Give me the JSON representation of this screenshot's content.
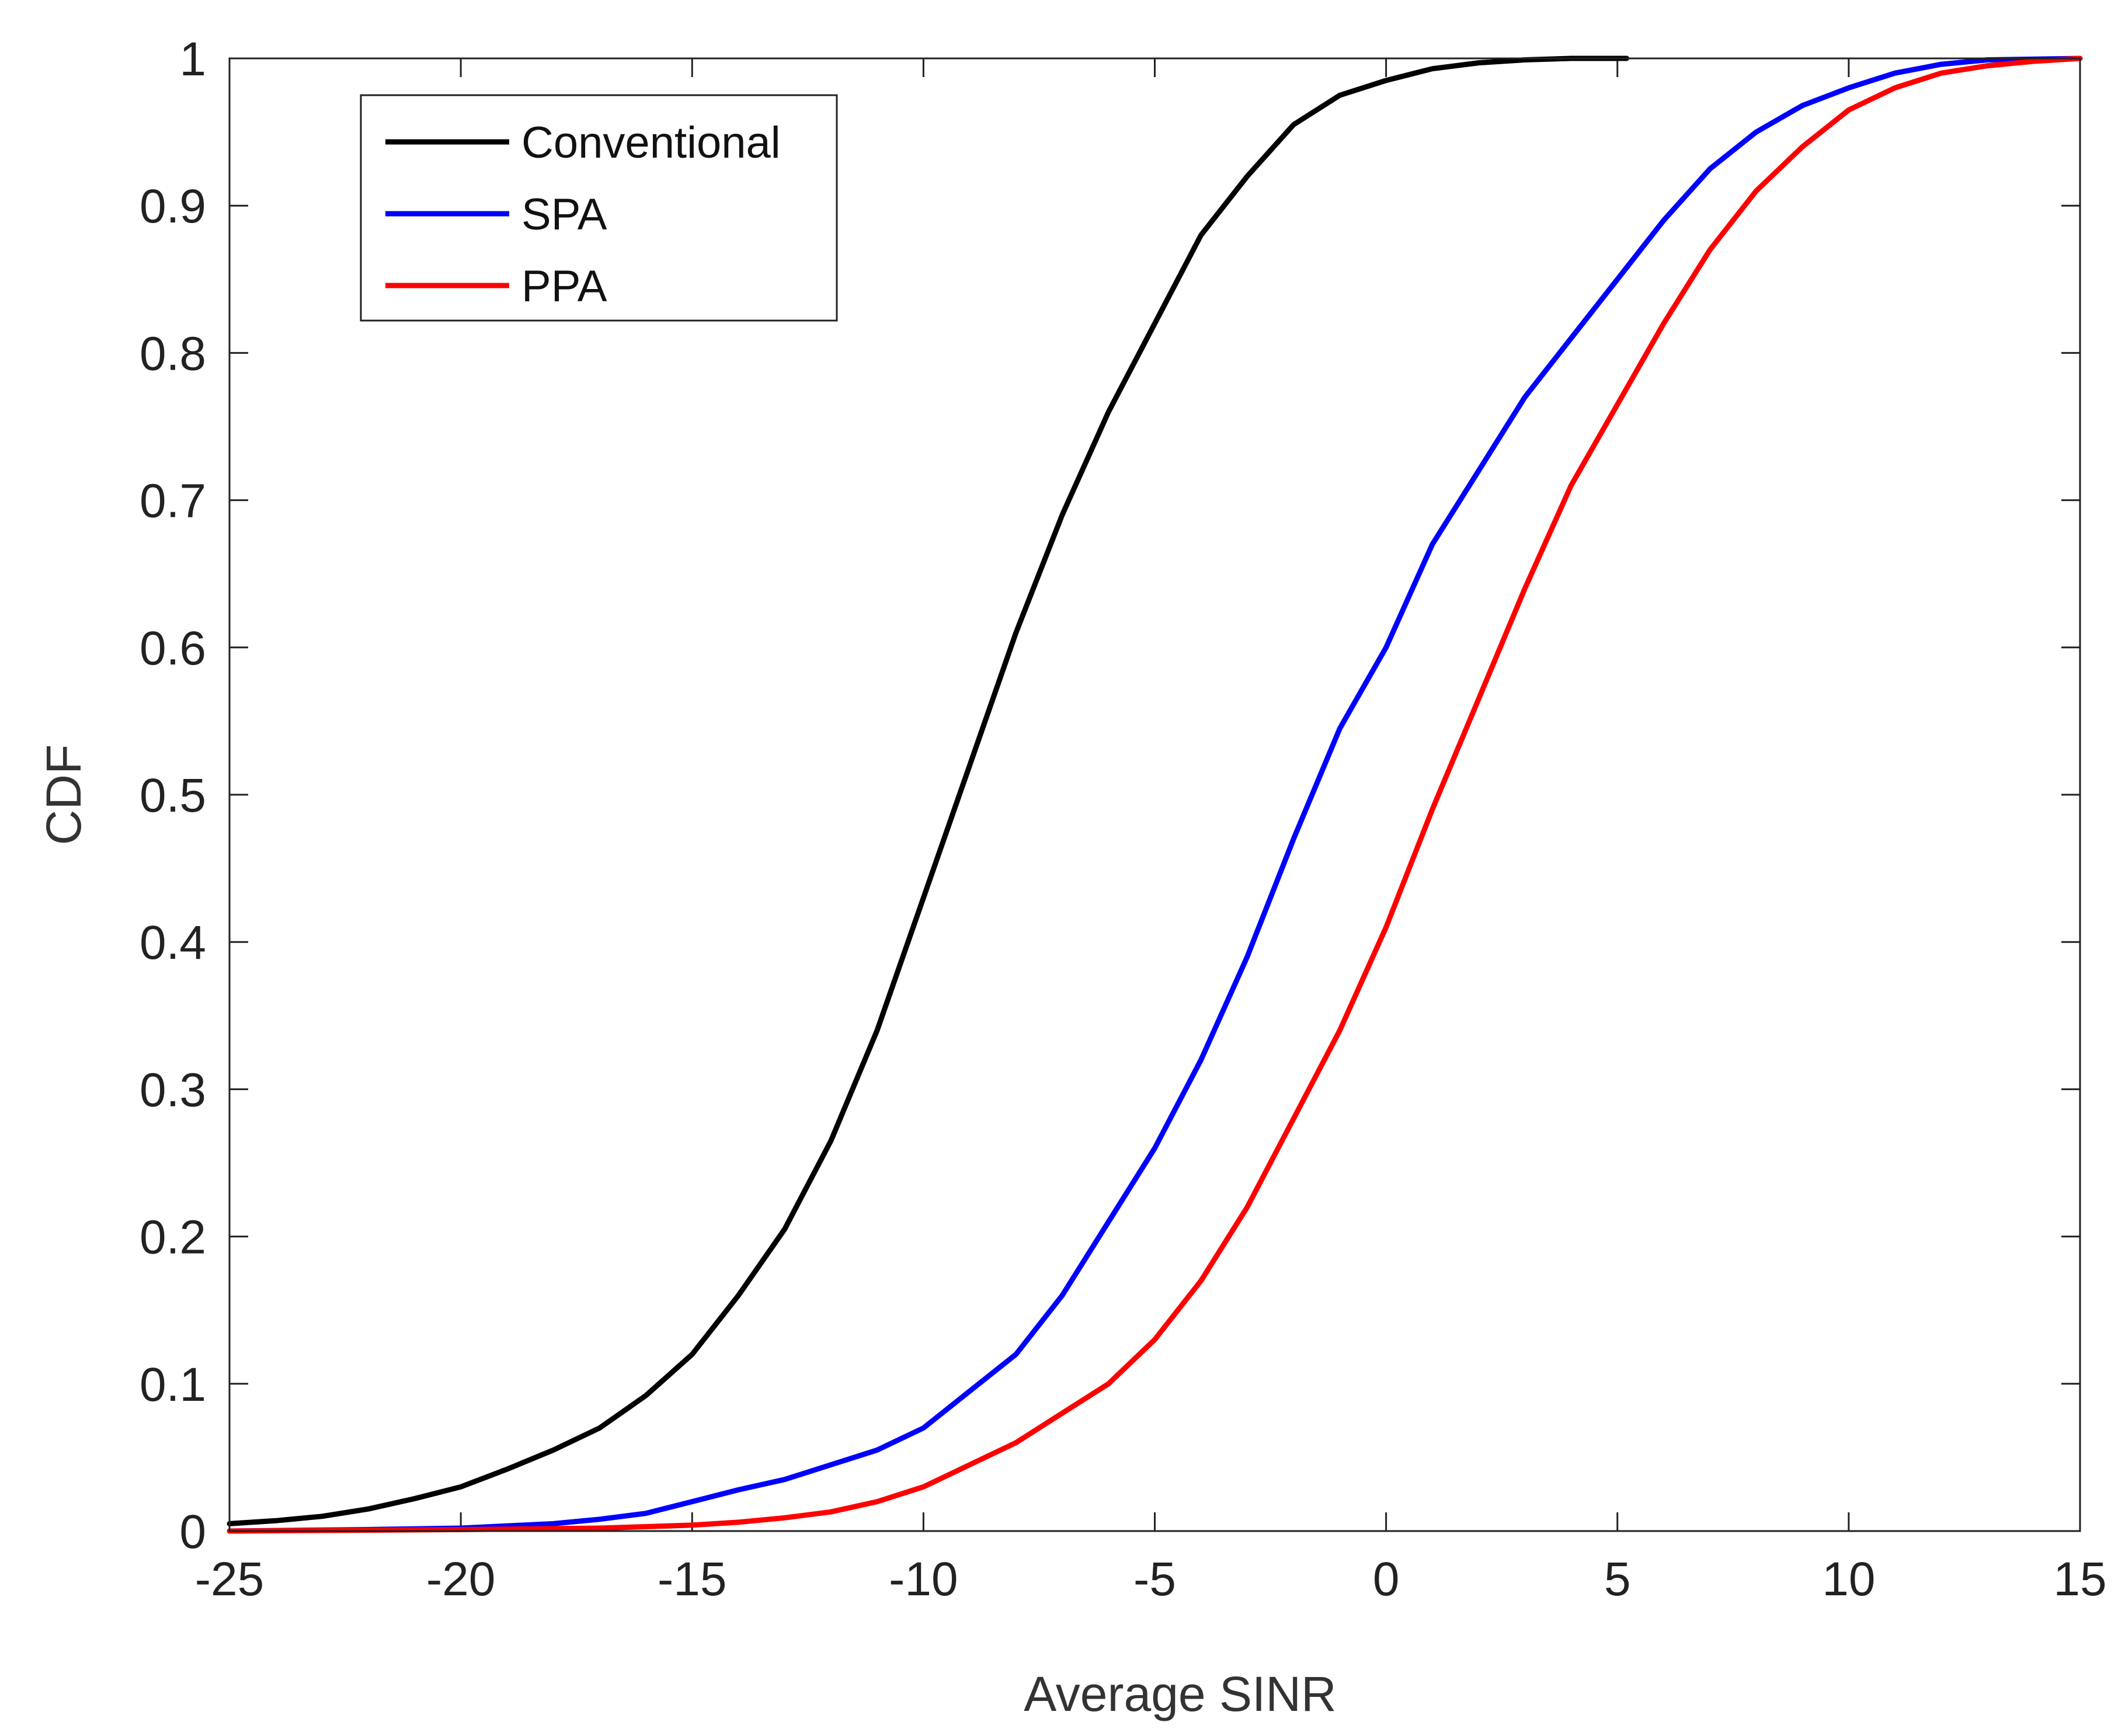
{
  "chart_data": {
    "type": "line",
    "title": "",
    "xlabel": "Average SINR",
    "ylabel": "CDF",
    "xlim": [
      -25,
      15
    ],
    "ylim": [
      0,
      1
    ],
    "x_ticks": [
      -25,
      -20,
      -15,
      -10,
      -5,
      0,
      5,
      10,
      15
    ],
    "y_ticks": [
      0,
      0.1,
      0.2,
      0.3,
      0.4,
      0.5,
      0.6,
      0.7,
      0.8,
      0.9,
      1
    ],
    "x_tick_labels": [
      "-25",
      "-20",
      "-15",
      "-10",
      "-5",
      "0",
      "5",
      "10",
      "15"
    ],
    "y_tick_labels": [
      "0",
      "0.1",
      "0.2",
      "0.3",
      "0.4",
      "0.5",
      "0.6",
      "0.7",
      "0.8",
      "0.9",
      "1"
    ],
    "grid": false,
    "legend_position": "top-left",
    "series": [
      {
        "name": "Conventional",
        "color": "#000000",
        "x": [
          -25,
          -24,
          -23,
          -22,
          -21,
          -20,
          -19,
          -18,
          -17,
          -16,
          -15,
          -14,
          -13,
          -12,
          -11,
          -10,
          -9,
          -8,
          -7,
          -6,
          -5,
          -4,
          -3,
          -2,
          -1,
          0,
          1,
          2,
          3,
          4,
          5.2
        ],
        "y": [
          0.005,
          0.007,
          0.01,
          0.015,
          0.022,
          0.03,
          0.042,
          0.055,
          0.07,
          0.092,
          0.12,
          0.16,
          0.205,
          0.265,
          0.34,
          0.43,
          0.52,
          0.61,
          0.69,
          0.76,
          0.82,
          0.88,
          0.92,
          0.955,
          0.975,
          0.985,
          0.993,
          0.997,
          0.999,
          1,
          1
        ]
      },
      {
        "name": "SPA",
        "color": "#0000ff",
        "x": [
          -25,
          -22,
          -20,
          -18,
          -17,
          -16,
          -15,
          -14,
          -13,
          -12,
          -11,
          -10,
          -9,
          -8,
          -7,
          -6,
          -5,
          -4,
          -3,
          -2,
          -1,
          0,
          1,
          2,
          3,
          4,
          5,
          6,
          7,
          8,
          9,
          10,
          11,
          12,
          13,
          15
        ],
        "y": [
          0,
          0.001,
          0.002,
          0.005,
          0.008,
          0.012,
          0.02,
          0.028,
          0.035,
          0.045,
          0.055,
          0.07,
          0.095,
          0.12,
          0.16,
          0.21,
          0.26,
          0.32,
          0.39,
          0.47,
          0.545,
          0.6,
          0.67,
          0.72,
          0.77,
          0.81,
          0.85,
          0.89,
          0.925,
          0.95,
          0.968,
          0.98,
          0.99,
          0.996,
          0.999,
          1
        ]
      },
      {
        "name": "PPA",
        "color": "#ff0000",
        "x": [
          -25,
          -20,
          -17,
          -15,
          -14,
          -13,
          -12,
          -11,
          -10,
          -9,
          -8,
          -7,
          -6,
          -5,
          -4,
          -3,
          -2,
          -1,
          0,
          1,
          2,
          3,
          4,
          5,
          6,
          7,
          8,
          9,
          10,
          11,
          12,
          13,
          14,
          15
        ],
        "y": [
          0,
          0.001,
          0.002,
          0.004,
          0.006,
          0.009,
          0.013,
          0.02,
          0.03,
          0.045,
          0.06,
          0.08,
          0.1,
          0.13,
          0.17,
          0.22,
          0.28,
          0.34,
          0.41,
          0.49,
          0.565,
          0.64,
          0.71,
          0.765,
          0.82,
          0.87,
          0.91,
          0.94,
          0.965,
          0.98,
          0.99,
          0.995,
          0.998,
          1
        ]
      }
    ]
  }
}
